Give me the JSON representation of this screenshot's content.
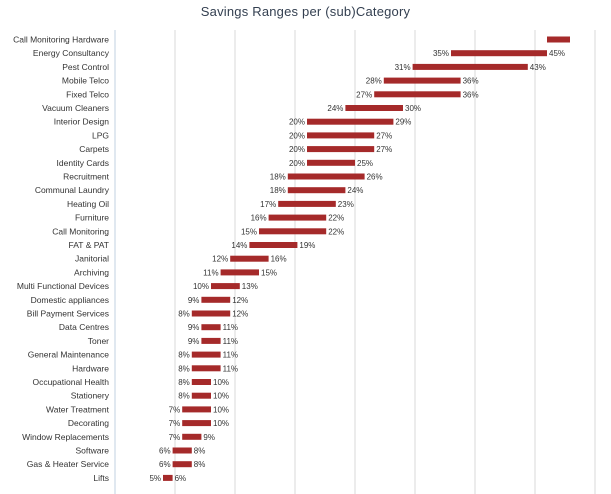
{
  "chart_data": {
    "type": "floating-bar",
    "title": "Savings Ranges per (sub)Category",
    "bar_color": "#a52a2a",
    "grid": true,
    "xlim": [
      0,
      50
    ],
    "rows": [
      {
        "category": "Call Monitoring Hardware",
        "min": 45,
        "max": 60,
        "min_label": "",
        "max_label": ""
      },
      {
        "category": "Energy Consultancy",
        "min": 35,
        "max": 45,
        "min_label": "35%",
        "max_label": "45%"
      },
      {
        "category": "Pest Control",
        "min": 31,
        "max": 43,
        "min_label": "31%",
        "max_label": "43%"
      },
      {
        "category": "Mobile Telco",
        "min": 28,
        "max": 36,
        "min_label": "28%",
        "max_label": "36%"
      },
      {
        "category": "Fixed Telco",
        "min": 27,
        "max": 36,
        "min_label": "27%",
        "max_label": "36%"
      },
      {
        "category": "Vacuum Cleaners",
        "min": 24,
        "max": 30,
        "min_label": "24%",
        "max_label": "30%"
      },
      {
        "category": "Interior Design",
        "min": 20,
        "max": 29,
        "min_label": "20%",
        "max_label": "29%"
      },
      {
        "category": "LPG",
        "min": 20,
        "max": 27,
        "min_label": "20%",
        "max_label": "27%"
      },
      {
        "category": "Carpets",
        "min": 20,
        "max": 27,
        "min_label": "20%",
        "max_label": "27%"
      },
      {
        "category": "Identity Cards",
        "min": 20,
        "max": 25,
        "min_label": "20%",
        "max_label": "25%"
      },
      {
        "category": "Recruitment",
        "min": 18,
        "max": 26,
        "min_label": "18%",
        "max_label": "26%"
      },
      {
        "category": "Communal Laundry",
        "min": 18,
        "max": 24,
        "min_label": "18%",
        "max_label": "24%"
      },
      {
        "category": "Heating Oil",
        "min": 17,
        "max": 23,
        "min_label": "17%",
        "max_label": "23%"
      },
      {
        "category": "Furniture",
        "min": 16,
        "max": 22,
        "min_label": "16%",
        "max_label": "22%"
      },
      {
        "category": "Call Monitoring",
        "min": 15,
        "max": 22,
        "min_label": "15%",
        "max_label": "22%"
      },
      {
        "category": "FAT & PAT",
        "min": 14,
        "max": 19,
        "min_label": "14%",
        "max_label": "19%"
      },
      {
        "category": "Janitorial",
        "min": 12,
        "max": 16,
        "min_label": "12%",
        "max_label": "16%"
      },
      {
        "category": "Archiving",
        "min": 11,
        "max": 15,
        "min_label": "11%",
        "max_label": "15%"
      },
      {
        "category": "Multi Functional Devices",
        "min": 10,
        "max": 13,
        "min_label": "10%",
        "max_label": "13%"
      },
      {
        "category": "Domestic appliances",
        "min": 9,
        "max": 12,
        "min_label": "9%",
        "max_label": "12%"
      },
      {
        "category": "Bill Payment Services",
        "min": 8,
        "max": 12,
        "min_label": "8%",
        "max_label": "12%"
      },
      {
        "category": "Data Centres",
        "min": 9,
        "max": 11,
        "min_label": "9%",
        "max_label": "11%"
      },
      {
        "category": "Toner",
        "min": 9,
        "max": 11,
        "min_label": "9%",
        "max_label": "11%"
      },
      {
        "category": "General Maintenance",
        "min": 8,
        "max": 11,
        "min_label": "8%",
        "max_label": "11%"
      },
      {
        "category": "Hardware",
        "min": 8,
        "max": 11,
        "min_label": "8%",
        "max_label": "11%"
      },
      {
        "category": "Occupational Health",
        "min": 8,
        "max": 10,
        "min_label": "8%",
        "max_label": "10%"
      },
      {
        "category": "Stationery",
        "min": 8,
        "max": 10,
        "min_label": "8%",
        "max_label": "10%"
      },
      {
        "category": "Water Treatment",
        "min": 7,
        "max": 10,
        "min_label": "7%",
        "max_label": "10%"
      },
      {
        "category": "Decorating",
        "min": 7,
        "max": 10,
        "min_label": "7%",
        "max_label": "10%"
      },
      {
        "category": "Window Replacements",
        "min": 7,
        "max": 9,
        "min_label": "7%",
        "max_label": "9%"
      },
      {
        "category": "Software",
        "min": 6,
        "max": 8,
        "min_label": "6%",
        "max_label": "8%"
      },
      {
        "category": "Gas & Heater Service",
        "min": 6,
        "max": 8,
        "min_label": "6%",
        "max_label": "8%"
      },
      {
        "category": "Lifts",
        "min": 5,
        "max": 6,
        "min_label": "5%",
        "max_label": "6%"
      }
    ]
  }
}
